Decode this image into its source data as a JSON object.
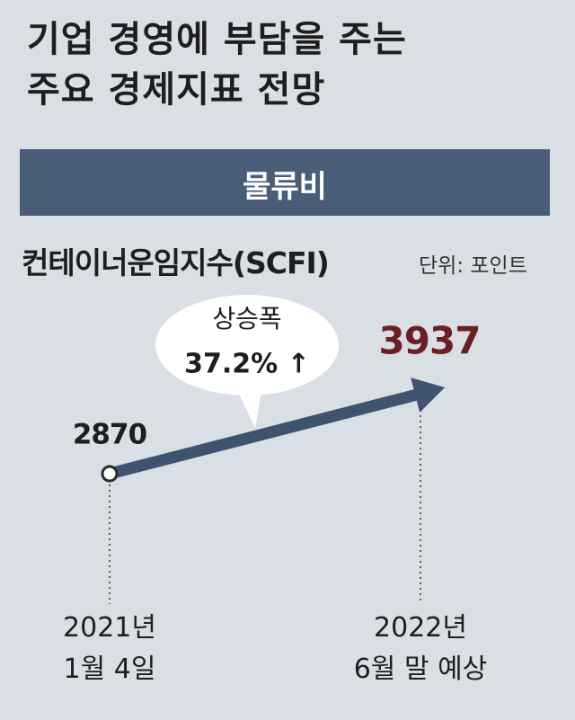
{
  "chart_data": {
    "type": "line",
    "title": "기업 경영에 부담을 주는\n주요 경제지표 전망",
    "banner": "물류비",
    "subtitle": "컨테이너운임지수(SCFI)",
    "unit": "단위: 포인트",
    "categories": [
      "2021년\n1월 4일",
      "2022년\n6월 말 예상"
    ],
    "values": [
      2870,
      3937
    ],
    "color": "#3f5370",
    "label_colors": [
      "#1e1e1e",
      "#6b1f24"
    ],
    "annotation": {
      "label": "상승폭",
      "text": "37.2% ↑"
    }
  }
}
